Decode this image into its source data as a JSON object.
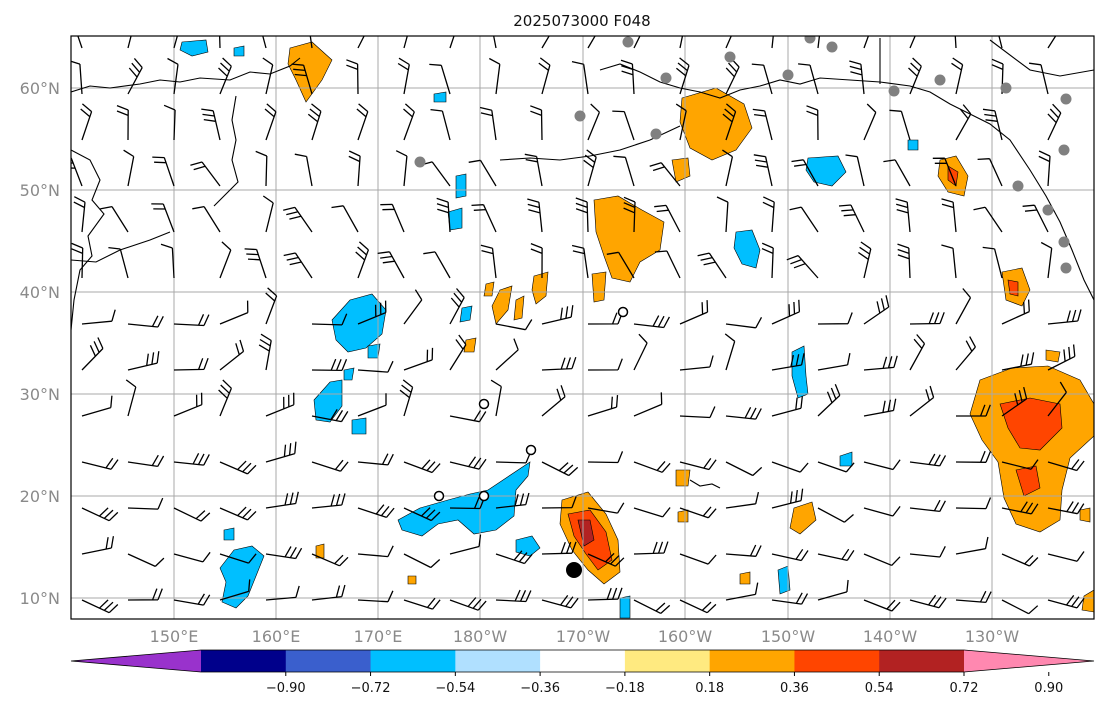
{
  "title": "2025073000 F048",
  "map": {
    "lat_ticks": [
      "10°N",
      "20°N",
      "30°N",
      "40°N",
      "50°N",
      "60°N"
    ],
    "lon_ticks": [
      "150°E",
      "160°E",
      "170°E",
      "180°W",
      "170°W",
      "160°W",
      "150°W",
      "140°W",
      "130°W"
    ],
    "grid": true,
    "extent": {
      "lon_min": 140,
      "lon_max": 240,
      "lat_min": 8,
      "lat_max": 65
    },
    "coastline_color": "#000000",
    "gridline_color": "#a9a9a9"
  },
  "colorbar": {
    "ticks": [
      "−0.90",
      "−0.72",
      "−0.54",
      "−0.36",
      "−0.18",
      "0.18",
      "0.36",
      "0.54",
      "0.72",
      "0.90"
    ],
    "colors": [
      "#9932cc",
      "#00008b",
      "#3a5fcd",
      "#00bfff",
      "#b0e0ff",
      "#ffffff",
      "#ffea80",
      "#ffa500",
      "#ff4500",
      "#b22222",
      "#ff88b0"
    ],
    "extend": "both"
  },
  "fields": {
    "positive_palette": {
      "light": "#ffa500",
      "mid": "#ff4500",
      "dark": "#b22222"
    },
    "negative_palette": {
      "light": "#00bfff"
    }
  }
}
